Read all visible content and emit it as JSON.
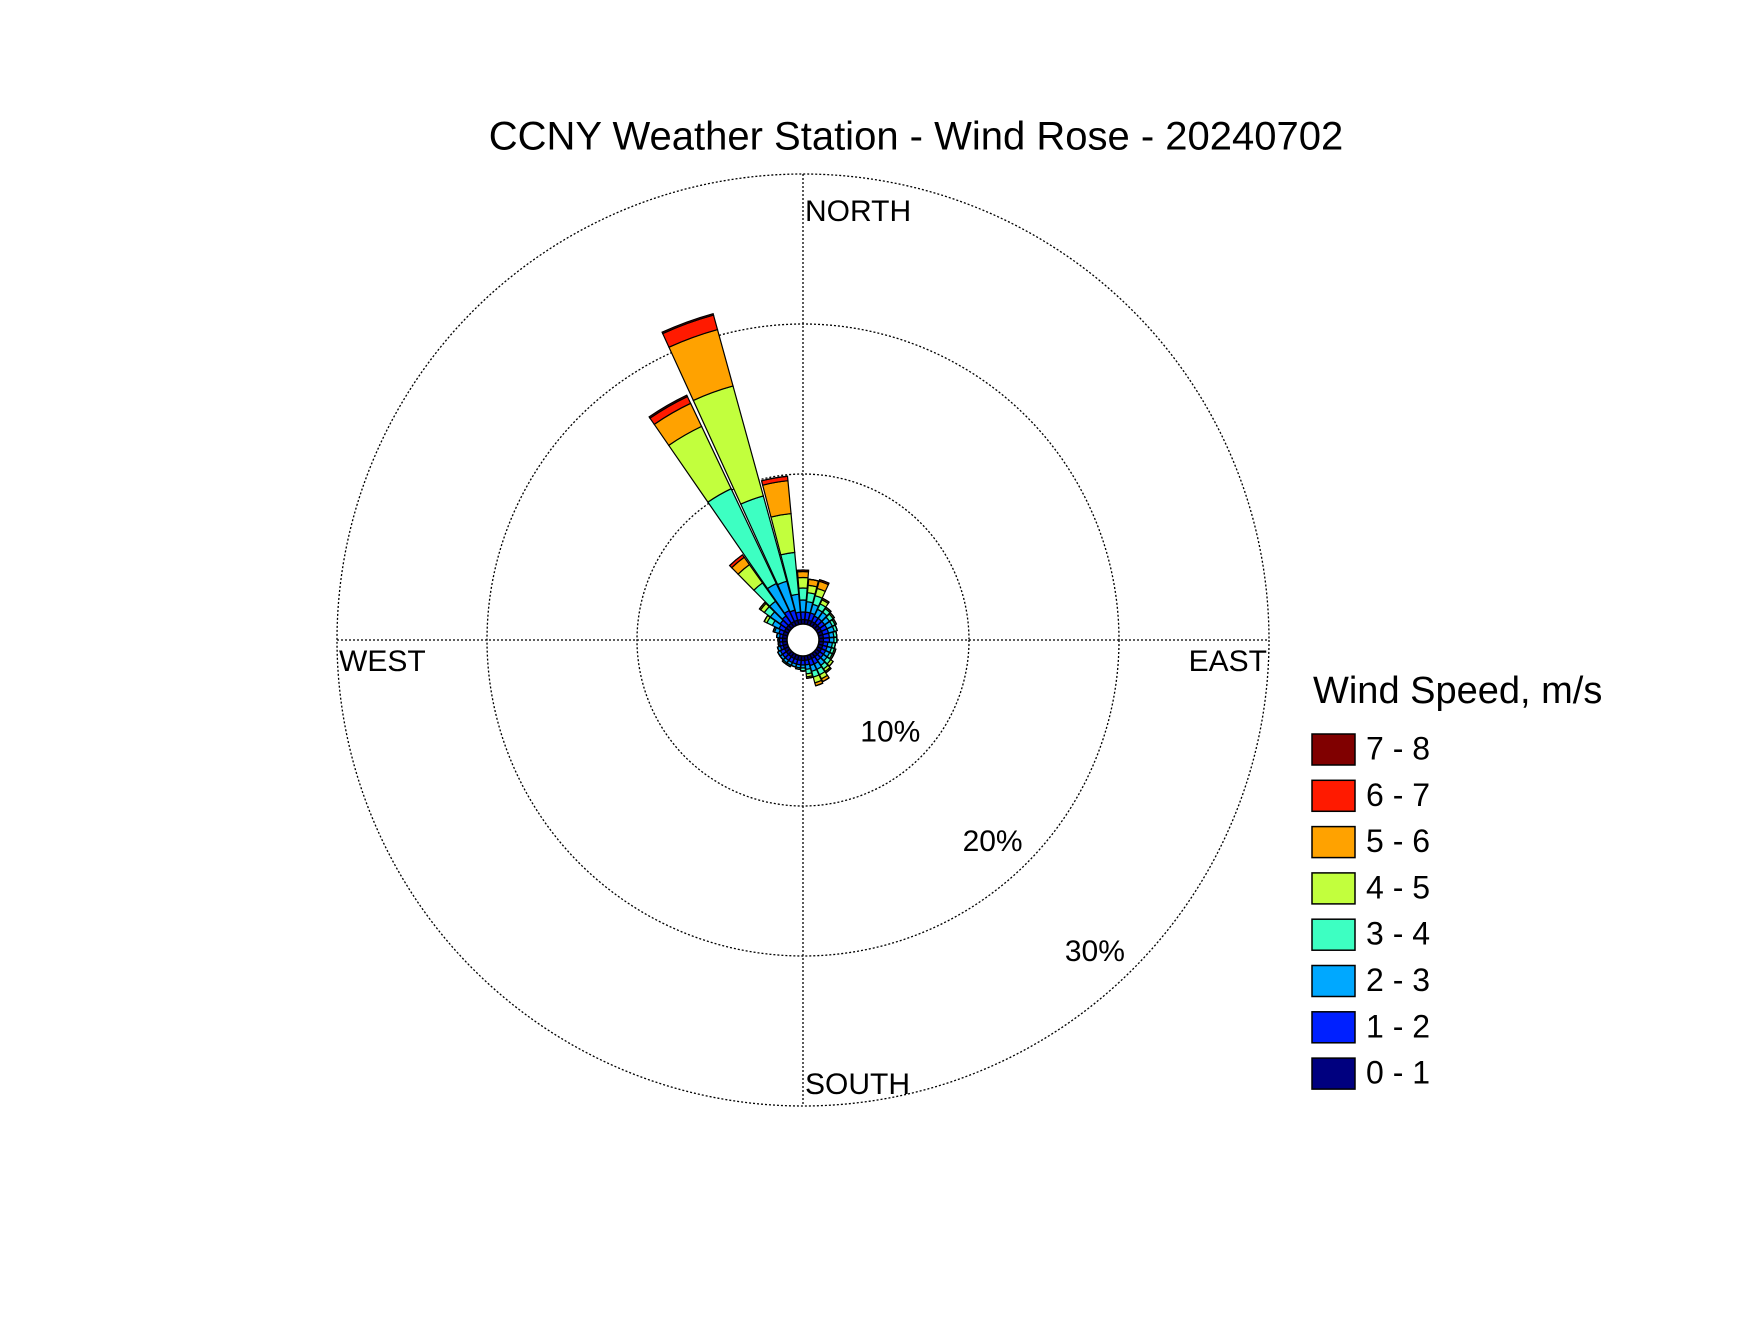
{
  "chart_data": {
    "type": "windrose",
    "title": "CCNY Weather Station - Wind Rose - 20240702",
    "legend_title": "Wind Speed, m/s",
    "direction_labels": {
      "north": "NORTH",
      "east": "EAST",
      "south": "SOUTH",
      "west": "WEST"
    },
    "x": [
      0,
      10,
      20,
      30,
      40,
      50,
      60,
      70,
      80,
      90,
      100,
      110,
      120,
      130,
      140,
      150,
      160,
      170,
      180,
      190,
      200,
      210,
      220,
      230,
      240,
      250,
      260,
      270,
      280,
      290,
      300,
      310,
      320,
      330,
      340,
      350
    ],
    "ylim": [
      0,
      30
    ],
    "yticks": [
      {
        "value": 10,
        "label": "10%"
      },
      {
        "value": 20,
        "label": "20%"
      },
      {
        "value": 30,
        "label": "30%"
      }
    ],
    "grid": true,
    "legend": "right",
    "series": [
      {
        "name": "0 - 1",
        "color": "#00007f",
        "values": [
          0.3,
          0.3,
          0.3,
          0.3,
          0.3,
          0.3,
          0.3,
          0.3,
          0.3,
          0.3,
          0.3,
          0.3,
          0.3,
          0.3,
          0.3,
          0.3,
          0.3,
          0.3,
          0.3,
          0.3,
          0.3,
          0.3,
          0.3,
          0.3,
          0.3,
          0.3,
          0.3,
          0.3,
          0.3,
          0.3,
          0.3,
          0.3,
          0.3,
          0.3,
          0.3,
          0.3
        ]
      },
      {
        "name": "1 - 2",
        "color": "#0020ff",
        "values": [
          0.5,
          0.5,
          0.5,
          0.4,
          0.4,
          0.4,
          0.4,
          0.4,
          0.4,
          0.4,
          0.3,
          0.3,
          0.3,
          0.3,
          0.3,
          0.4,
          0.4,
          0.3,
          0.3,
          0.3,
          0.3,
          0.3,
          0.3,
          0.3,
          0.3,
          0.2,
          0.2,
          0.2,
          0.2,
          0.3,
          0.4,
          0.5,
          0.6,
          0.8,
          0.7,
          0.5
        ]
      },
      {
        "name": "2 - 3",
        "color": "#00a8ff",
        "values": [
          0.8,
          0.7,
          0.6,
          0.5,
          0.5,
          0.4,
          0.4,
          0.4,
          0.3,
          0.3,
          0.3,
          0.3,
          0.3,
          0.3,
          0.4,
          0.4,
          0.4,
          0.3,
          0.2,
          0.2,
          0.2,
          0.2,
          0.2,
          0.2,
          0.2,
          0.2,
          0.1,
          0.1,
          0.2,
          0.3,
          0.5,
          0.8,
          1.2,
          2.0,
          2.0,
          1.2
        ]
      },
      {
        "name": "3 - 4",
        "color": "#3dffc2",
        "values": [
          0.8,
          0.6,
          0.6,
          0.4,
          0.3,
          0.3,
          0.2,
          0.2,
          0.2,
          0.2,
          0.2,
          0.2,
          0.2,
          0.3,
          0.3,
          0.4,
          0.4,
          0.3,
          0.2,
          0.1,
          0,
          0.1,
          0.1,
          0,
          0,
          0,
          0,
          0,
          0,
          0.1,
          0.4,
          0.5,
          1.5,
          7.0,
          5.9,
          2.8
        ]
      },
      {
        "name": "4 - 5",
        "color": "#c2ff3d",
        "values": [
          0.7,
          0.5,
          0.5,
          0.3,
          0.1,
          0.1,
          0.1,
          0,
          0,
          0,
          0,
          0.1,
          0.1,
          0.2,
          0.2,
          0.3,
          0.4,
          0.2,
          0,
          0,
          0,
          0,
          0,
          0,
          0,
          0,
          0,
          0,
          0,
          0,
          0.2,
          0.3,
          1.5,
          4.6,
          7.6,
          2.6
        ]
      },
      {
        "name": "5 - 6",
        "color": "#ffa200",
        "values": [
          0.4,
          0.4,
          0.5,
          0.1,
          0,
          0,
          0,
          0,
          0,
          0,
          0,
          0,
          0,
          0,
          0.1,
          0.2,
          0.2,
          0.1,
          0,
          0,
          0,
          0,
          0,
          0,
          0,
          0,
          0,
          0,
          0,
          0,
          0,
          0.1,
          0.6,
          1.7,
          3.9,
          2.2
        ]
      },
      {
        "name": "6 - 7",
        "color": "#ff1a00",
        "values": [
          0.1,
          0,
          0.1,
          0,
          0,
          0,
          0,
          0,
          0,
          0,
          0,
          0,
          0,
          0,
          0,
          0,
          0,
          0,
          0,
          0,
          0,
          0,
          0,
          0,
          0,
          0,
          0,
          0,
          0,
          0,
          0,
          0,
          0.2,
          0.5,
          1.0,
          0.3
        ]
      },
      {
        "name": "7 - 8",
        "color": "#800000",
        "values": [
          0,
          0,
          0,
          0,
          0,
          0,
          0,
          0,
          0,
          0,
          0,
          0,
          0,
          0,
          0,
          0,
          0,
          0,
          0,
          0,
          0,
          0,
          0,
          0,
          0,
          0,
          0,
          0,
          0,
          0,
          0,
          0,
          0,
          0.1,
          0.1,
          0
        ]
      }
    ]
  }
}
